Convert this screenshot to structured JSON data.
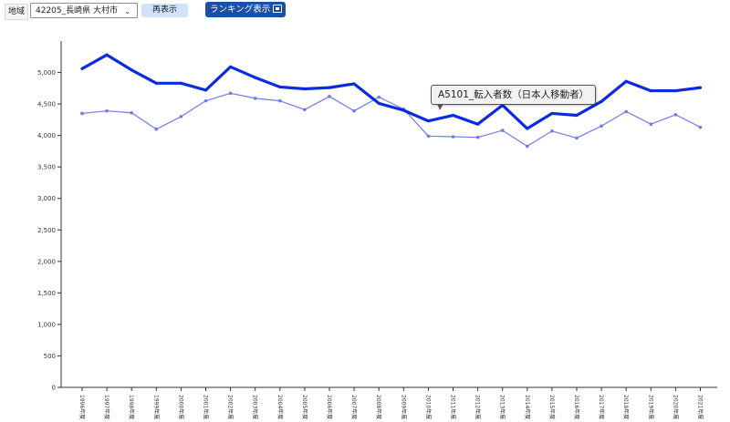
{
  "toolbar": {
    "region_label": "地域",
    "region_select_value": "42205_長崎県 大村市",
    "redisplay_label": "再表示",
    "ranking_label": "ランキング表示"
  },
  "tooltip": {
    "text": "A5101_転入者数（日本人移動者）"
  },
  "chart_data": {
    "type": "line",
    "categories": [
      "1996年度",
      "1997年度",
      "1998年度",
      "1999年度",
      "2000年度",
      "2001年度",
      "2002年度",
      "2003年度",
      "2004年度",
      "2005年度",
      "2006年度",
      "2007年度",
      "2008年度",
      "2009年度",
      "2010年度",
      "2011年度",
      "2012年度",
      "2013年度",
      "2014年度",
      "2015年度",
      "2016年度",
      "2017年度",
      "2018年度",
      "2019年度",
      "2020年度",
      "2021年度"
    ],
    "ylim": [
      0,
      5500
    ],
    "yticks": [
      0,
      500,
      1000,
      1500,
      2000,
      2500,
      3000,
      3500,
      4000,
      4500,
      5000
    ],
    "ytick_labels": [
      "0",
      "500",
      "1,000",
      "1,500",
      "2,000",
      "2,500",
      "3,000",
      "3,500",
      "4,000",
      "4,500",
      "5,000"
    ],
    "grid": false,
    "series": [
      {
        "name": "A5101_転入者数（日本人移動者）",
        "color": "#0b2be0",
        "values": [
          5060,
          5280,
          5040,
          4830,
          4830,
          4720,
          5090,
          4920,
          4770,
          4740,
          4760,
          4820,
          4510,
          4400,
          4230,
          4320,
          4180,
          4480,
          4110,
          4350,
          4320,
          4540,
          4860,
          4710,
          4710,
          4760
        ]
      },
      {
        "color": "#6f7ce8",
        "values": [
          4350,
          4390,
          4360,
          4100,
          4300,
          4550,
          4670,
          4590,
          4550,
          4410,
          4620,
          4390,
          4610,
          4420,
          3990,
          3980,
          3970,
          4080,
          3830,
          4070,
          3960,
          4150,
          4380,
          4180,
          4330,
          4130
        ]
      }
    ]
  }
}
